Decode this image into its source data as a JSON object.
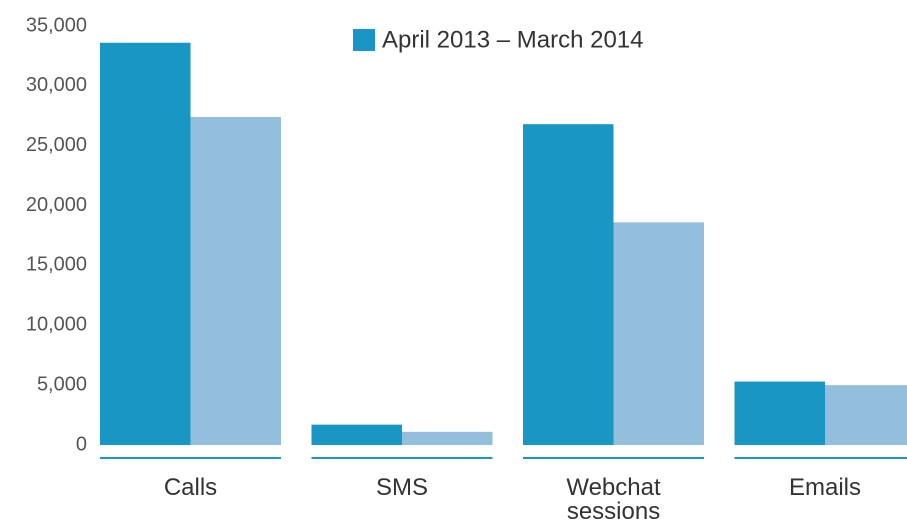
{
  "chart_data": {
    "type": "bar",
    "categories": [
      "Calls",
      "SMS",
      "Webchat sessions",
      "Emails"
    ],
    "series": [
      {
        "name": "April 2013 – March 2014",
        "color": "#1a96c4",
        "values": [
          33600,
          1700,
          26800,
          5300
        ]
      },
      {
        "color": "#93bfdd",
        "values": [
          27400,
          1100,
          18600,
          5000
        ]
      }
    ],
    "ylim": [
      0,
      35000
    ],
    "yticks": [
      0,
      {
        "value": 5000,
        "label": "5,000"
      },
      {
        "value": 10000,
        "label": "10,000"
      },
      {
        "value": 15000,
        "label": "15,000"
      },
      {
        "value": 20000,
        "label": "20,000"
      },
      {
        "value": 25000,
        "label": "25,000"
      },
      {
        "value": 30000,
        "label": "30,000"
      },
      {
        "value": 35000,
        "label": "35,000"
      }
    ],
    "grid": false,
    "legend": "top"
  }
}
